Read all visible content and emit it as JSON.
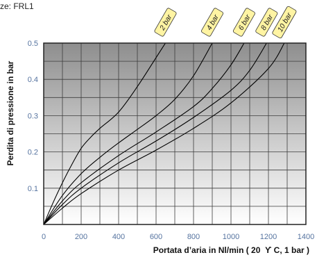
{
  "header": {
    "caption": "ze: FRL1"
  },
  "colors": {
    "plot_bg_top": "#8e8e8e",
    "plot_bg_mid": "#c9c9c9",
    "plot_bg_bottom": "#ffffff",
    "grid": "#3c3c3c",
    "border": "#222222",
    "curve": "#000000",
    "tick_label": "#55739f",
    "tag_fill": "#fff4a3",
    "tag_stroke": "#333333"
  },
  "chart_data": {
    "type": "line",
    "xlabel": "Portata d’aria in Nl/min ( 20  ϒ C, 1 bar )",
    "ylabel": "Perdita di pressione in bar",
    "xlim": [
      0,
      1400
    ],
    "ylim": [
      0,
      0.5
    ],
    "xticks": [
      0,
      200,
      400,
      600,
      800,
      1000,
      1200,
      1400
    ],
    "yticks": [
      0.1,
      0.2,
      0.3,
      0.4,
      0.5
    ],
    "grid": true,
    "legend": "top",
    "series": [
      {
        "name": "2 bar",
        "x": [
          0,
          50,
          100,
          150,
          200,
          250,
          300,
          400,
          500,
          600,
          650
        ],
        "y": [
          0,
          0.06,
          0.115,
          0.165,
          0.21,
          0.24,
          0.265,
          0.31,
          0.38,
          0.46,
          0.5
        ]
      },
      {
        "name": "4 bar",
        "x": [
          0,
          100,
          200,
          300,
          400,
          500,
          600,
          700,
          800,
          900
        ],
        "y": [
          0,
          0.08,
          0.14,
          0.185,
          0.225,
          0.262,
          0.3,
          0.345,
          0.41,
          0.5
        ]
      },
      {
        "name": "6 bar",
        "x": [
          0,
          100,
          200,
          400,
          600,
          800,
          900,
          1000,
          1070
        ],
        "y": [
          0,
          0.065,
          0.115,
          0.19,
          0.255,
          0.325,
          0.375,
          0.44,
          0.5
        ]
      },
      {
        "name": "8 bar",
        "x": [
          0,
          100,
          200,
          400,
          600,
          800,
          1000,
          1100,
          1190
        ],
        "y": [
          0,
          0.055,
          0.1,
          0.17,
          0.23,
          0.295,
          0.37,
          0.425,
          0.5
        ]
      },
      {
        "name": "10 bar",
        "x": [
          0,
          100,
          200,
          400,
          600,
          800,
          1000,
          1200,
          1285
        ],
        "y": [
          0,
          0.045,
          0.085,
          0.15,
          0.205,
          0.265,
          0.335,
          0.43,
          0.5
        ]
      }
    ]
  }
}
